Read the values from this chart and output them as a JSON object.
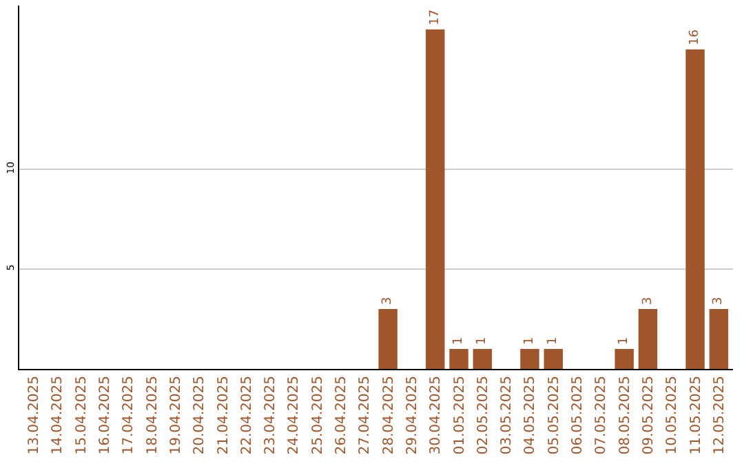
{
  "chart_data": {
    "type": "bar",
    "categories": [
      "13.04.2025",
      "14.04.2025",
      "15.04.2025",
      "16.04.2025",
      "17.04.2025",
      "18.04.2025",
      "19.04.2025",
      "20.04.2025",
      "21.04.2025",
      "22.04.2025",
      "23.04.2025",
      "24.04.2025",
      "25.04.2025",
      "26.04.2025",
      "27.04.2025",
      "28.04.2025",
      "29.04.2025",
      "30.04.2025",
      "01.05.2025",
      "02.05.2025",
      "03.05.2025",
      "04.05.2025",
      "05.05.2025",
      "06.05.2025",
      "07.05.2025",
      "08.05.2025",
      "09.05.2025",
      "10.05.2025",
      "11.05.2025",
      "12.05.2025"
    ],
    "values": [
      0,
      0,
      0,
      0,
      0,
      0,
      0,
      0,
      0,
      0,
      0,
      0,
      0,
      0,
      0,
      3,
      0,
      17,
      1,
      1,
      0,
      1,
      1,
      0,
      0,
      1,
      3,
      0,
      16,
      3
    ],
    "value_labels": [
      null,
      null,
      null,
      null,
      null,
      null,
      null,
      null,
      null,
      null,
      null,
      null,
      null,
      null,
      null,
      "3",
      null,
      "17",
      "1",
      "1",
      null,
      "1",
      "1",
      null,
      null,
      "1",
      "3",
      null,
      "16",
      "3"
    ],
    "color": "#a0562c",
    "ylim": [
      0,
      18.2
    ],
    "yticks": [
      5,
      10
    ],
    "grid": "y",
    "legend": false
  }
}
